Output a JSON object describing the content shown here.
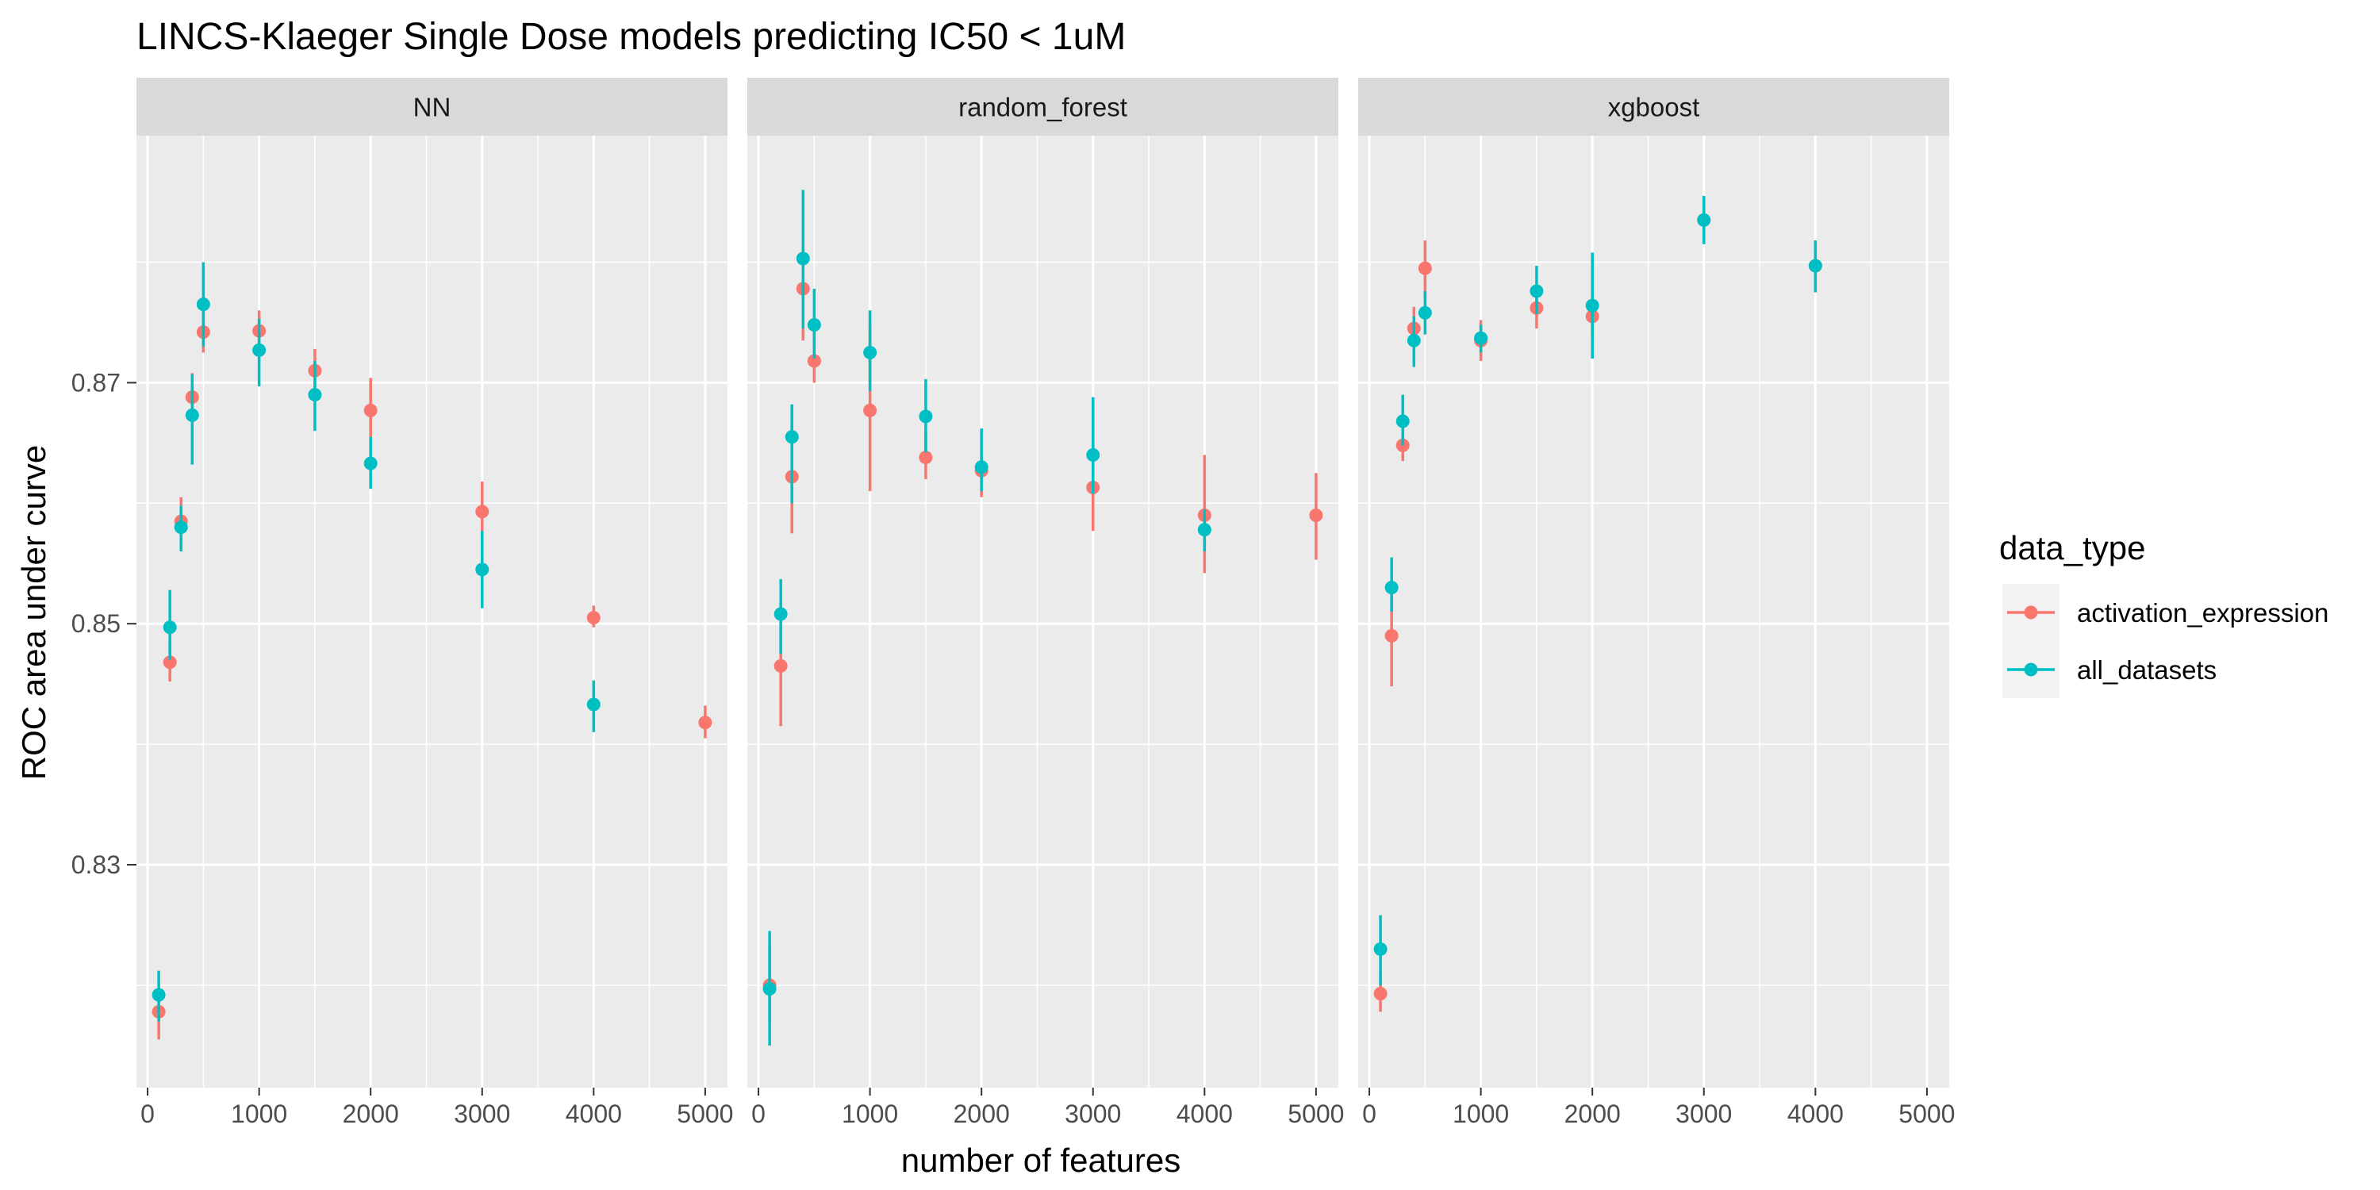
{
  "chart_data": {
    "type": "scatter",
    "title": "LINCS-Klaeger Single Dose models predicting IC50 < 1uM",
    "xlabel": "number of features",
    "ylabel": "ROC area under curve",
    "xlim": [
      -100,
      5200
    ],
    "ylim": [
      0.8115,
      0.8905
    ],
    "x_ticks": [
      0,
      1000,
      2000,
      3000,
      4000,
      5000
    ],
    "x_tick_labels": [
      "0",
      "1000",
      "2000",
      "3000",
      "4000",
      "5000"
    ],
    "y_ticks": [
      0.83,
      0.85,
      0.87
    ],
    "y_tick_labels": [
      "0.83",
      "0.85",
      "0.87"
    ],
    "y_minor_ticks": [
      0.82,
      0.84,
      0.86,
      0.88
    ],
    "grid": true,
    "legend": {
      "title": "data_type",
      "position": "right",
      "entries": [
        "activation_expression",
        "all_datasets"
      ]
    },
    "series_colors": {
      "activation_expression": "#F8766D",
      "all_datasets": "#00BFC4"
    },
    "panels": [
      {
        "name": "NN",
        "series": [
          {
            "name": "activation_expression",
            "points": [
              {
                "x": 100,
                "y": 0.8178,
                "lo": 0.8155,
                "hi": 0.8198
              },
              {
                "x": 200,
                "y": 0.8468,
                "lo": 0.8452,
                "hi": 0.8488
              },
              {
                "x": 300,
                "y": 0.8585,
                "lo": 0.8567,
                "hi": 0.8605
              },
              {
                "x": 400,
                "y": 0.8688,
                "lo": 0.8668,
                "hi": 0.8708
              },
              {
                "x": 500,
                "y": 0.8742,
                "lo": 0.8725,
                "hi": 0.8762
              },
              {
                "x": 1000,
                "y": 0.8743,
                "lo": 0.8725,
                "hi": 0.876
              },
              {
                "x": 1500,
                "y": 0.871,
                "lo": 0.8695,
                "hi": 0.8728
              },
              {
                "x": 2000,
                "y": 0.8677,
                "lo": 0.8652,
                "hi": 0.8704
              },
              {
                "x": 3000,
                "y": 0.8593,
                "lo": 0.8568,
                "hi": 0.8618
              },
              {
                "x": 4000,
                "y": 0.8505,
                "lo": 0.8497,
                "hi": 0.8515
              },
              {
                "x": 5000,
                "y": 0.8418,
                "lo": 0.8405,
                "hi": 0.8432
              }
            ]
          },
          {
            "name": "all_datasets",
            "points": [
              {
                "x": 100,
                "y": 0.8192,
                "lo": 0.817,
                "hi": 0.8212
              },
              {
                "x": 200,
                "y": 0.8497,
                "lo": 0.847,
                "hi": 0.8528
              },
              {
                "x": 300,
                "y": 0.858,
                "lo": 0.856,
                "hi": 0.8598
              },
              {
                "x": 400,
                "y": 0.8673,
                "lo": 0.8632,
                "hi": 0.8707
              },
              {
                "x": 500,
                "y": 0.8765,
                "lo": 0.873,
                "hi": 0.88
              },
              {
                "x": 1000,
                "y": 0.8727,
                "lo": 0.8697,
                "hi": 0.8753
              },
              {
                "x": 1500,
                "y": 0.869,
                "lo": 0.866,
                "hi": 0.8718
              },
              {
                "x": 2000,
                "y": 0.8633,
                "lo": 0.8612,
                "hi": 0.8655
              },
              {
                "x": 3000,
                "y": 0.8545,
                "lo": 0.8513,
                "hi": 0.8577
              },
              {
                "x": 4000,
                "y": 0.8433,
                "lo": 0.841,
                "hi": 0.8453
              }
            ]
          }
        ]
      },
      {
        "name": "random_forest",
        "series": [
          {
            "name": "activation_expression",
            "points": [
              {
                "x": 100,
                "y": 0.82,
                "lo": 0.8168,
                "hi": 0.8232
              },
              {
                "x": 200,
                "y": 0.8465,
                "lo": 0.8415,
                "hi": 0.8518
              },
              {
                "x": 300,
                "y": 0.8622,
                "lo": 0.8575,
                "hi": 0.8672
              },
              {
                "x": 400,
                "y": 0.8778,
                "lo": 0.8735,
                "hi": 0.8818
              },
              {
                "x": 500,
                "y": 0.8718,
                "lo": 0.87,
                "hi": 0.874
              },
              {
                "x": 1000,
                "y": 0.8677,
                "lo": 0.861,
                "hi": 0.8748
              },
              {
                "x": 1500,
                "y": 0.8638,
                "lo": 0.862,
                "hi": 0.866
              },
              {
                "x": 2000,
                "y": 0.8627,
                "lo": 0.8605,
                "hi": 0.865
              },
              {
                "x": 3000,
                "y": 0.8613,
                "lo": 0.8577,
                "hi": 0.8652
              },
              {
                "x": 4000,
                "y": 0.859,
                "lo": 0.8542,
                "hi": 0.864
              },
              {
                "x": 5000,
                "y": 0.859,
                "lo": 0.8553,
                "hi": 0.8625
              }
            ]
          },
          {
            "name": "all_datasets",
            "points": [
              {
                "x": 100,
                "y": 0.8197,
                "lo": 0.815,
                "hi": 0.8245
              },
              {
                "x": 200,
                "y": 0.8508,
                "lo": 0.8475,
                "hi": 0.8537
              },
              {
                "x": 300,
                "y": 0.8655,
                "lo": 0.86,
                "hi": 0.8682
              },
              {
                "x": 400,
                "y": 0.8803,
                "lo": 0.8745,
                "hi": 0.886
              },
              {
                "x": 500,
                "y": 0.8748,
                "lo": 0.872,
                "hi": 0.8778
              },
              {
                "x": 1000,
                "y": 0.8725,
                "lo": 0.8693,
                "hi": 0.876
              },
              {
                "x": 1500,
                "y": 0.8672,
                "lo": 0.8642,
                "hi": 0.8703
              },
              {
                "x": 2000,
                "y": 0.863,
                "lo": 0.861,
                "hi": 0.8662
              },
              {
                "x": 3000,
                "y": 0.864,
                "lo": 0.8608,
                "hi": 0.8688
              },
              {
                "x": 4000,
                "y": 0.8578,
                "lo": 0.856,
                "hi": 0.8595
              }
            ]
          }
        ]
      },
      {
        "name": "xgboost",
        "series": [
          {
            "name": "activation_expression",
            "points": [
              {
                "x": 100,
                "y": 0.8193,
                "lo": 0.8178,
                "hi": 0.821
              },
              {
                "x": 200,
                "y": 0.849,
                "lo": 0.8448,
                "hi": 0.8532
              },
              {
                "x": 300,
                "y": 0.8648,
                "lo": 0.8635,
                "hi": 0.866
              },
              {
                "x": 400,
                "y": 0.8745,
                "lo": 0.8728,
                "hi": 0.8763
              },
              {
                "x": 500,
                "y": 0.8795,
                "lo": 0.877,
                "hi": 0.8818
              },
              {
                "x": 1000,
                "y": 0.8735,
                "lo": 0.8718,
                "hi": 0.8752
              },
              {
                "x": 1500,
                "y": 0.8762,
                "lo": 0.8745,
                "hi": 0.878
              },
              {
                "x": 2000,
                "y": 0.8755,
                "lo": 0.8737,
                "hi": 0.8772
              },
              {
                "x": 3000,
                "y": 0.8835,
                "lo": 0.8815,
                "hi": 0.8855
              },
              {
                "x": 4000,
                "y": 0.8797,
                "lo": 0.8775,
                "hi": 0.8818
              }
            ]
          },
          {
            "name": "all_datasets",
            "points": [
              {
                "x": 100,
                "y": 0.823,
                "lo": 0.82,
                "hi": 0.8258
              },
              {
                "x": 200,
                "y": 0.853,
                "lo": 0.851,
                "hi": 0.8555
              },
              {
                "x": 300,
                "y": 0.8668,
                "lo": 0.8648,
                "hi": 0.869
              },
              {
                "x": 400,
                "y": 0.8735,
                "lo": 0.8713,
                "hi": 0.8755
              },
              {
                "x": 500,
                "y": 0.8758,
                "lo": 0.874,
                "hi": 0.8776
              },
              {
                "x": 1000,
                "y": 0.8737,
                "lo": 0.8725,
                "hi": 0.8748
              },
              {
                "x": 1500,
                "y": 0.8776,
                "lo": 0.8757,
                "hi": 0.8797
              },
              {
                "x": 2000,
                "y": 0.8764,
                "lo": 0.872,
                "hi": 0.8808
              },
              {
                "x": 3000,
                "y": 0.8835,
                "lo": 0.8815,
                "hi": 0.8855
              },
              {
                "x": 4000,
                "y": 0.8797,
                "lo": 0.8775,
                "hi": 0.8818
              }
            ]
          }
        ]
      }
    ]
  }
}
